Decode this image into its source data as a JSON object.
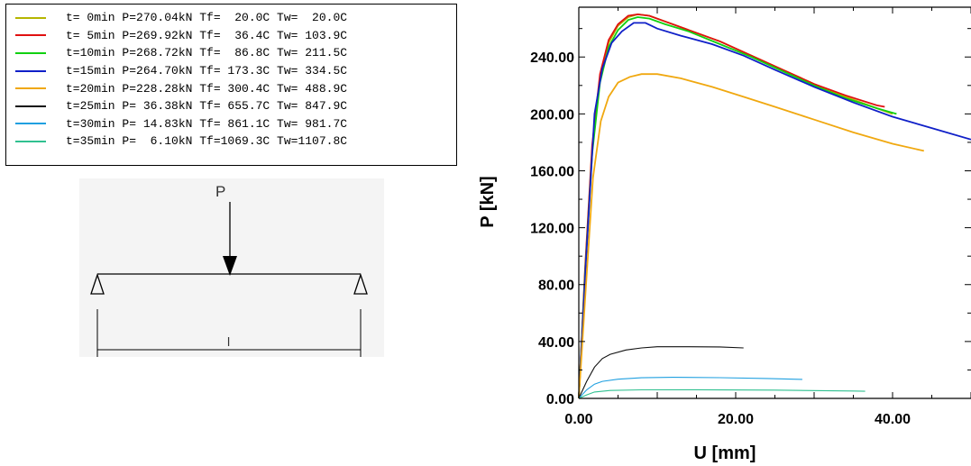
{
  "legend": [
    {
      "label": "t= 0min P=270.04kN Tf=  20.0C Tw=  20.0C",
      "color": "#b5b500"
    },
    {
      "label": "t= 5min P=269.92kN Tf=  36.4C Tw= 103.9C",
      "color": "#e01010"
    },
    {
      "label": "t=10min P=268.72kN Tf=  86.8C Tw= 211.5C",
      "color": "#10d010"
    },
    {
      "label": "t=15min P=264.70kN Tf= 173.3C Tw= 334.5C",
      "color": "#1020c8"
    },
    {
      "label": "t=20min P=228.28kN Tf= 300.4C Tw= 488.9C",
      "color": "#f0a810"
    },
    {
      "label": "t=25min P= 36.38kN Tf= 655.7C Tw= 847.9C",
      "color": "#101010"
    },
    {
      "label": "t=30min P= 14.83kN Tf= 861.1C Tw= 981.7C",
      "color": "#20a0e0"
    },
    {
      "label": "t=35min P=  6.10kN Tf=1069.3C Tw=1107.8C",
      "color": "#30c090"
    }
  ],
  "diagram": {
    "load_label": "P",
    "span_label": "l"
  },
  "chart_data": {
    "type": "line",
    "xlabel": "U [mm]",
    "ylabel": "P [kN]",
    "xlim": [
      0,
      50
    ],
    "ylim": [
      0,
      275
    ],
    "xticks": [
      "0.00",
      "20.00",
      "40.00"
    ],
    "yticks": [
      "0.00",
      "40.00",
      "80.00",
      "120.00",
      "160.00",
      "200.00",
      "240.00"
    ],
    "series": [
      {
        "color": "#b5b500",
        "x": [
          0,
          0.8,
          1.7,
          2.7,
          3.8,
          5.0,
          6.3,
          7.5,
          9.0,
          11,
          14,
          18,
          22,
          26,
          30,
          34,
          38,
          40
        ],
        "y": [
          0,
          90,
          175,
          225,
          250,
          262,
          268,
          270,
          269,
          265,
          259,
          251,
          241,
          231,
          221,
          212,
          204,
          200
        ]
      },
      {
        "color": "#e01010",
        "x": [
          0,
          0.8,
          1.7,
          2.7,
          3.8,
          5.0,
          6.3,
          7.5,
          9.0,
          11,
          14,
          18,
          22,
          26,
          30,
          34,
          38,
          39
        ],
        "y": [
          0,
          92,
          178,
          228,
          252,
          263,
          269,
          270,
          269,
          265,
          259,
          251,
          241,
          231,
          221,
          213,
          206,
          205
        ]
      },
      {
        "color": "#10d010",
        "x": [
          0,
          0.8,
          1.7,
          2.7,
          3.8,
          5.0,
          6.3,
          7.5,
          9.0,
          11,
          14,
          18,
          22,
          26,
          30,
          34,
          38,
          40.5
        ],
        "y": [
          0,
          88,
          172,
          222,
          247,
          259,
          266,
          268,
          267,
          263,
          258,
          249,
          240,
          230,
          220,
          211,
          204,
          200
        ]
      },
      {
        "color": "#1020c8",
        "x": [
          0,
          0.9,
          2.0,
          3.0,
          4.2,
          5.5,
          7.0,
          8.5,
          10,
          13,
          17,
          21,
          25,
          30,
          35,
          40,
          45,
          50
        ],
        "y": [
          0,
          95,
          200,
          232,
          250,
          258,
          264,
          264,
          260,
          255,
          249,
          241,
          231,
          219,
          208,
          198,
          190,
          182
        ]
      },
      {
        "color": "#f0a810",
        "x": [
          0,
          0.8,
          1.8,
          2.8,
          3.8,
          5.0,
          6.5,
          8.0,
          10,
          13,
          17,
          21,
          25,
          30,
          35,
          40,
          44
        ],
        "y": [
          0,
          70,
          155,
          195,
          212,
          222,
          226,
          228,
          228,
          225,
          219,
          212,
          205,
          196,
          187,
          179,
          174
        ]
      },
      {
        "color": "#101010",
        "x": [
          0,
          1,
          2,
          3,
          4,
          6,
          8,
          10,
          14,
          18,
          21
        ],
        "y": [
          0,
          12,
          22,
          28,
          31,
          34,
          35.5,
          36.3,
          36.3,
          36.2,
          35.5
        ]
      },
      {
        "color": "#20a0e0",
        "x": [
          0,
          1,
          2,
          3,
          5,
          8,
          12,
          18,
          24,
          28.5
        ],
        "y": [
          0,
          6,
          10,
          12,
          13.5,
          14.5,
          14.8,
          14.6,
          14.0,
          13.4
        ]
      },
      {
        "color": "#30c090",
        "x": [
          0,
          1,
          2,
          4,
          8,
          15,
          25,
          35,
          36.5
        ],
        "y": [
          0,
          2.5,
          4.5,
          5.6,
          6.0,
          6.1,
          5.8,
          5.2,
          5.0
        ]
      }
    ]
  }
}
